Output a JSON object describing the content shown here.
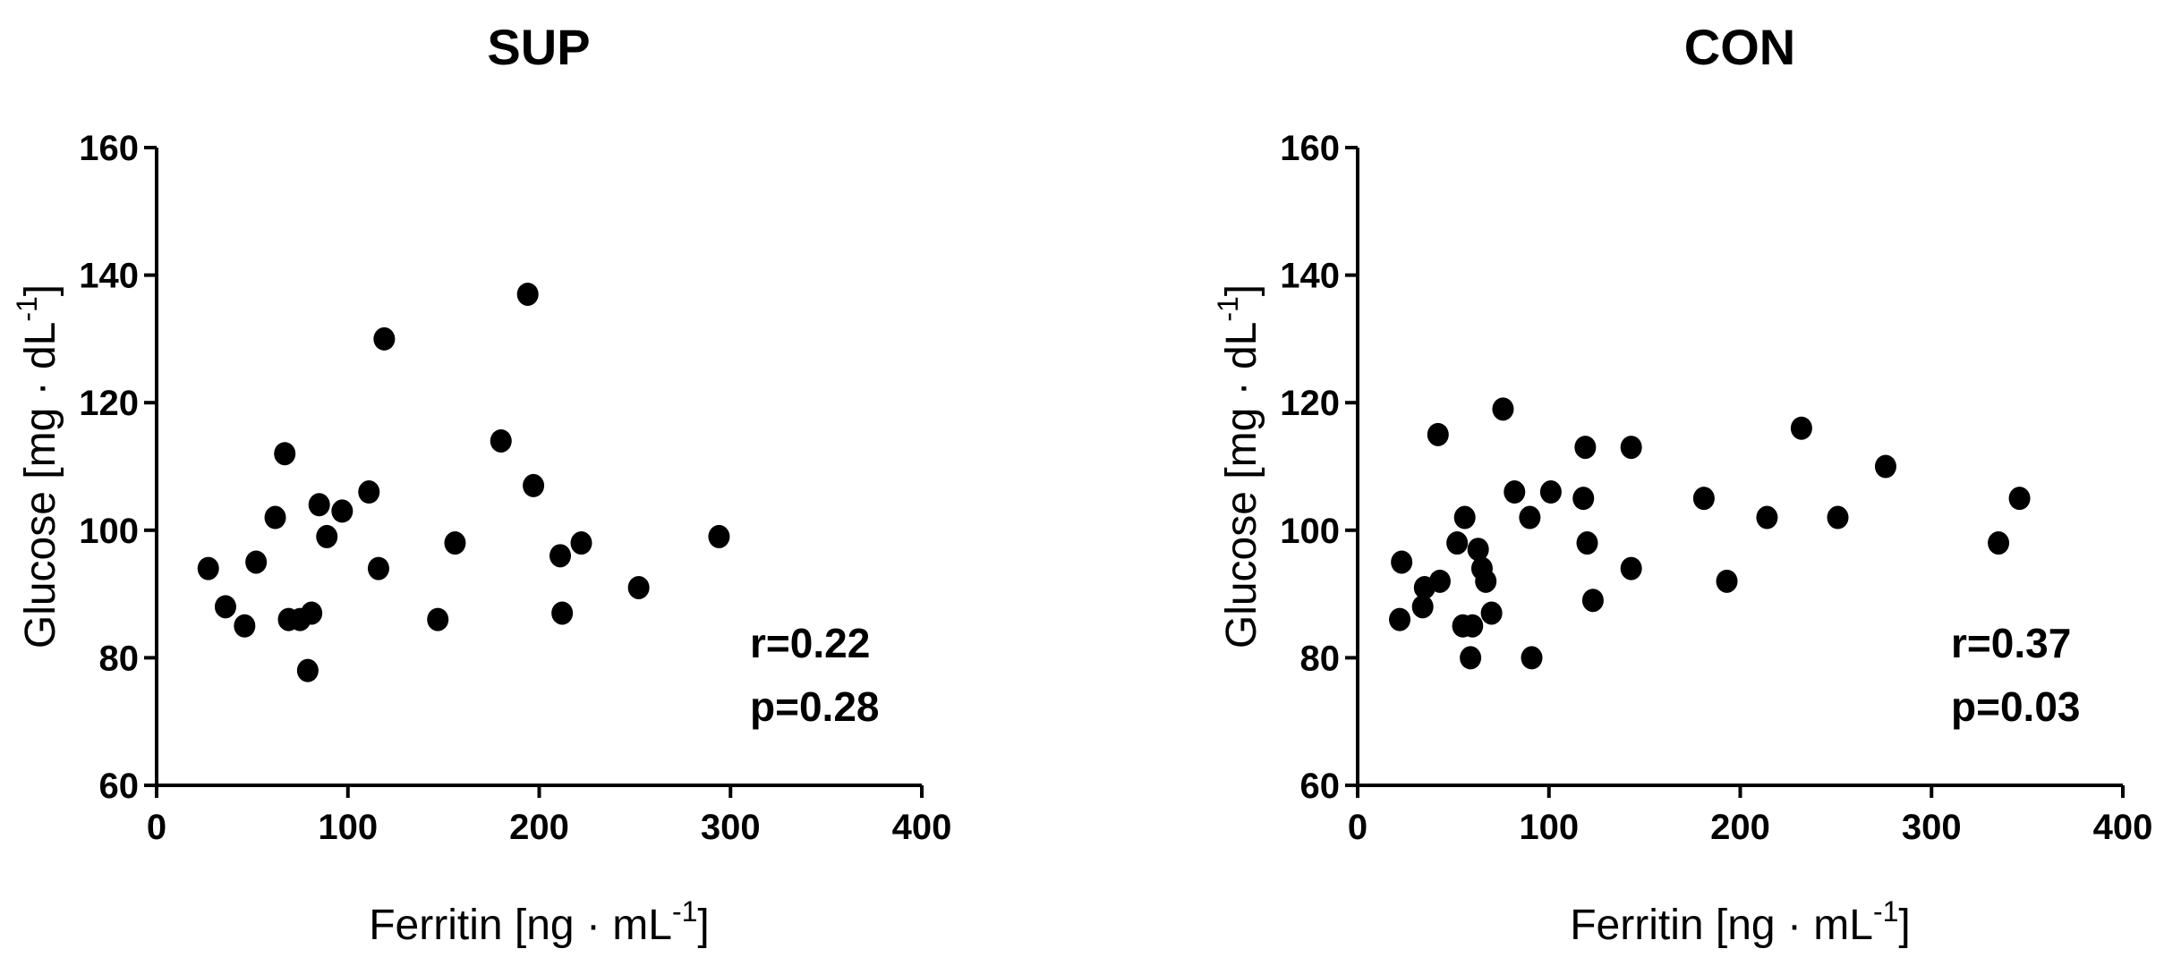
{
  "chart_data": [
    {
      "type": "scatter",
      "title": "SUP",
      "xlabel": "Ferritin [ng · mL",
      "xlabel_sup": "-1",
      "xlabel_end": "]",
      "ylabel": "Glucose  [mg · dL",
      "ylabel_sup": "-1",
      "ylabel_end": "]",
      "xlim": [
        0,
        400
      ],
      "ylim": [
        60,
        160
      ],
      "xticks": [
        0,
        100,
        200,
        300,
        400
      ],
      "yticks": [
        60,
        80,
        100,
        120,
        140,
        160
      ],
      "grid": false,
      "stats": {
        "r": "r=0.22",
        "p": "p=0.28"
      },
      "points": [
        {
          "x": 27,
          "y": 94
        },
        {
          "x": 36,
          "y": 88
        },
        {
          "x": 46,
          "y": 85
        },
        {
          "x": 52,
          "y": 95
        },
        {
          "x": 62,
          "y": 102
        },
        {
          "x": 67,
          "y": 112
        },
        {
          "x": 69,
          "y": 86
        },
        {
          "x": 75,
          "y": 86
        },
        {
          "x": 79,
          "y": 78
        },
        {
          "x": 81,
          "y": 87
        },
        {
          "x": 85,
          "y": 104
        },
        {
          "x": 89,
          "y": 99
        },
        {
          "x": 97,
          "y": 103
        },
        {
          "x": 111,
          "y": 106
        },
        {
          "x": 116,
          "y": 94
        },
        {
          "x": 119,
          "y": 130
        },
        {
          "x": 147,
          "y": 86
        },
        {
          "x": 156,
          "y": 98
        },
        {
          "x": 180,
          "y": 114
        },
        {
          "x": 194,
          "y": 137
        },
        {
          "x": 197,
          "y": 107
        },
        {
          "x": 211,
          "y": 96
        },
        {
          "x": 212,
          "y": 87
        },
        {
          "x": 222,
          "y": 98
        },
        {
          "x": 252,
          "y": 91
        },
        {
          "x": 294,
          "y": 99
        }
      ]
    },
    {
      "type": "scatter",
      "title": "CON",
      "xlabel": "Ferritin [ng · mL",
      "xlabel_sup": "-1",
      "xlabel_end": "]",
      "ylabel": "Glucose  [mg · dL",
      "ylabel_sup": "-1",
      "ylabel_end": "]",
      "xlim": [
        0,
        400
      ],
      "ylim": [
        60,
        160
      ],
      "xticks": [
        0,
        100,
        200,
        300,
        400
      ],
      "yticks": [
        60,
        80,
        100,
        120,
        140,
        160
      ],
      "grid": false,
      "stats": {
        "r": "r=0.37",
        "p": "p=0.03"
      },
      "points": [
        {
          "x": 22,
          "y": 86
        },
        {
          "x": 23,
          "y": 95
        },
        {
          "x": 34,
          "y": 88
        },
        {
          "x": 35,
          "y": 91
        },
        {
          "x": 42,
          "y": 115
        },
        {
          "x": 43,
          "y": 92
        },
        {
          "x": 52,
          "y": 98
        },
        {
          "x": 55,
          "y": 85
        },
        {
          "x": 56,
          "y": 102
        },
        {
          "x": 59,
          "y": 80
        },
        {
          "x": 60,
          "y": 85
        },
        {
          "x": 63,
          "y": 97
        },
        {
          "x": 65,
          "y": 94
        },
        {
          "x": 67,
          "y": 92
        },
        {
          "x": 70,
          "y": 87
        },
        {
          "x": 76,
          "y": 119
        },
        {
          "x": 82,
          "y": 106
        },
        {
          "x": 90,
          "y": 102
        },
        {
          "x": 91,
          "y": 80
        },
        {
          "x": 101,
          "y": 106
        },
        {
          "x": 118,
          "y": 105
        },
        {
          "x": 119,
          "y": 113
        },
        {
          "x": 120,
          "y": 98
        },
        {
          "x": 123,
          "y": 89
        },
        {
          "x": 143,
          "y": 94
        },
        {
          "x": 143,
          "y": 113
        },
        {
          "x": 181,
          "y": 105
        },
        {
          "x": 193,
          "y": 92
        },
        {
          "x": 214,
          "y": 102
        },
        {
          "x": 232,
          "y": 116
        },
        {
          "x": 251,
          "y": 102
        },
        {
          "x": 276,
          "y": 110
        },
        {
          "x": 335,
          "y": 98
        },
        {
          "x": 346,
          "y": 105
        }
      ]
    }
  ]
}
